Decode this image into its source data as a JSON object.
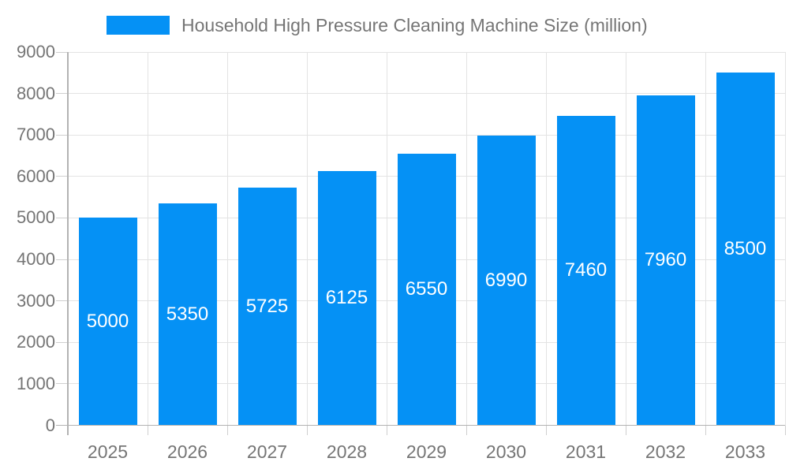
{
  "chart_data": {
    "type": "bar",
    "title": "Household High Pressure Cleaning Machine Size (million)",
    "series_name": "Household High Pressure Cleaning Machine Size (million)",
    "categories": [
      "2025",
      "2026",
      "2027",
      "2028",
      "2029",
      "2030",
      "2031",
      "2032",
      "2033"
    ],
    "values": [
      5000,
      5350,
      5725,
      6125,
      6550,
      6990,
      7460,
      7960,
      8500
    ],
    "xlabel": "",
    "ylabel": "",
    "ylim": [
      0,
      9000
    ],
    "ytick_step": 1000,
    "ytick_labels": [
      "0",
      "1000",
      "2000",
      "3000",
      "4000",
      "5000",
      "6000",
      "7000",
      "8000",
      "9000"
    ],
    "grid": true,
    "legend_position": "top",
    "value_labels_position": "inside-center"
  },
  "colors": {
    "bar": "#0591F5",
    "value_label": "#ffffff",
    "axis_text": "#757575",
    "gridline": "#e3e3e3",
    "axis_line": "#b3b3b3",
    "tick": "#cfcfcf",
    "background": "#ffffff"
  }
}
